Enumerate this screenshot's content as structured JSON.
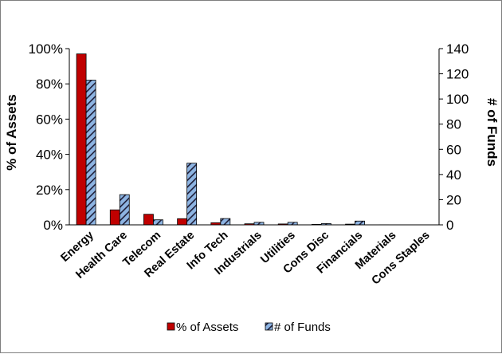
{
  "chart_data": {
    "type": "bar",
    "categories": [
      "Energy",
      "Health Care",
      "Telecom",
      "Real Estate",
      "Info Tech",
      "Industrials",
      "Utilities",
      "Cons Disc",
      "Financials",
      "Materials",
      "Cons Staples"
    ],
    "series": [
      {
        "name": "% of Assets",
        "axis": "left",
        "values": [
          97,
          8.5,
          6,
          3.5,
          1.2,
          0.6,
          0.5,
          0.3,
          0.4,
          0.05,
          0
        ],
        "color": "#c00000"
      },
      {
        "name": "# of Funds",
        "axis": "right",
        "values": [
          115,
          24,
          4,
          49,
          5,
          2,
          2,
          1,
          3,
          0,
          0
        ],
        "color": "#8db4e2",
        "pattern": "diagonal-hatch"
      }
    ],
    "y_left": {
      "label": "% of Assets",
      "ylim": [
        0,
        100
      ],
      "ticks": [
        "0%",
        "20%",
        "40%",
        "60%",
        "80%",
        "100%"
      ]
    },
    "y_right": {
      "label": "# of Funds",
      "ylim": [
        0,
        140
      ],
      "ticks": [
        "0",
        "20",
        "40",
        "60",
        "80",
        "100",
        "120",
        "140"
      ]
    },
    "grid": false,
    "legend_placement": "bottom"
  }
}
